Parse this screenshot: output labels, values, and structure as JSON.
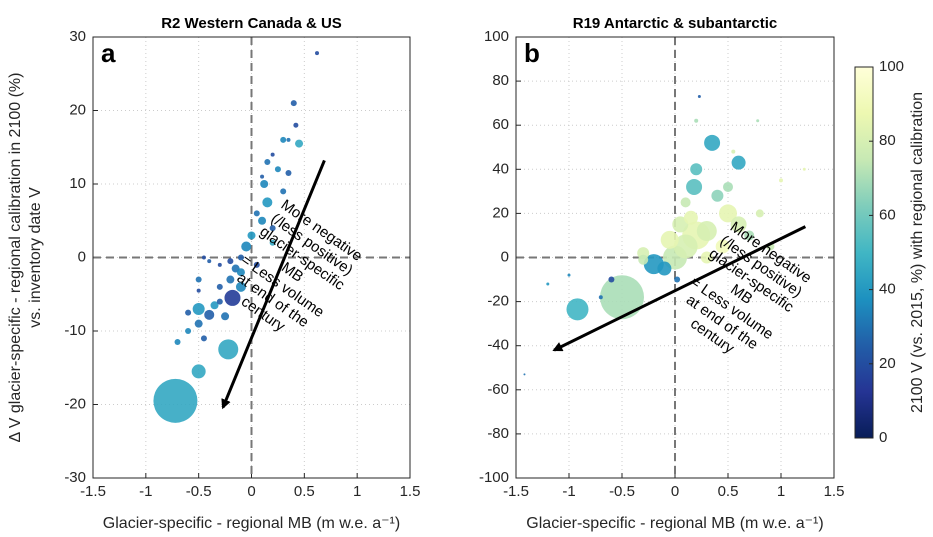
{
  "chart_data": [
    {
      "type": "scatter",
      "panel": "a",
      "title": "R2 Western Canada & US",
      "x_label": "Glacier-specific - regional MB (m w.e. a⁻¹)",
      "y_label": [
        "Δ V glacier-specific - regional calibration in 2100 (%)",
        "vs. inventory date V"
      ],
      "annotation": [
        "More negative",
        "(/less positive)",
        "glacier-specific",
        "MB",
        "= Less volume",
        "at end of the",
        "century"
      ],
      "xlim": [
        -1.5,
        1.5
      ],
      "xticks": [
        -1.5,
        -1,
        -0.5,
        0,
        0.5,
        1,
        1.5
      ],
      "ylim": [
        -30,
        30
      ],
      "yticks": [
        -30,
        -20,
        -10,
        0,
        10,
        20,
        30
      ],
      "grid": true,
      "zero_lines": true,
      "x": [
        0.62,
        0.4,
        0.42,
        0.35,
        0.3,
        0.45,
        0.2,
        0.15,
        0.25,
        0.1,
        0.35,
        0.12,
        0.3,
        0.15,
        0.05,
        0.1,
        0.2,
        0,
        -0.05,
        -0.1,
        -0.2,
        -0.15,
        -0.3,
        -0.4,
        -0.45,
        -0.2,
        -0.1,
        -0.3,
        -0.5,
        -0.5,
        -0.3,
        -0.35,
        -0.18,
        -0.5,
        -0.6,
        -0.4,
        -0.25,
        -0.5,
        -0.6,
        -0.45,
        -0.7,
        -0.22,
        -0.5,
        -0.72,
        0.2,
        0.05,
        -0.1
      ],
      "y": [
        27.8,
        21,
        18,
        16,
        16,
        15.5,
        14,
        13,
        12,
        11,
        11.5,
        10,
        9,
        7.5,
        6,
        5,
        4,
        3,
        1.5,
        0,
        -0.5,
        -1.5,
        -1,
        -0.5,
        0,
        -3,
        -4,
        -4,
        -3,
        -4.5,
        -6,
        -6.5,
        -5.5,
        -7,
        -7.5,
        -7.8,
        -8,
        -9,
        -10,
        -11,
        -11.5,
        -12.5,
        -15.5,
        -19.5,
        2,
        -1,
        -2
      ],
      "sizes": [
        2,
        3,
        2.5,
        2,
        3,
        4,
        2,
        3,
        3,
        2,
        3,
        4,
        3,
        5,
        3,
        4,
        3,
        4,
        5,
        3,
        3,
        4,
        2,
        2,
        2,
        4,
        5,
        3,
        3,
        2,
        3,
        4,
        8,
        6,
        3,
        5,
        4,
        4,
        3,
        3,
        3,
        10,
        7,
        22,
        3,
        3,
        4
      ],
      "color_values": [
        20,
        25,
        20,
        30,
        35,
        45,
        20,
        30,
        35,
        25,
        25,
        35,
        30,
        40,
        30,
        35,
        25,
        40,
        35,
        25,
        20,
        30,
        20,
        25,
        20,
        30,
        35,
        25,
        30,
        20,
        25,
        40,
        15,
        40,
        25,
        25,
        30,
        30,
        35,
        25,
        35,
        45,
        45,
        45,
        45,
        20,
        35
      ]
    },
    {
      "type": "scatter",
      "panel": "b",
      "title": "R19 Antarctic & subantarctic",
      "x_label": "Glacier-specific - regional MB (m w.e. a⁻¹)",
      "annotation": [
        "More negative",
        "(/less positive)",
        "glacier-specific",
        "MB",
        "= Less volume",
        "at end of the",
        "century"
      ],
      "xlim": [
        -1.5,
        1.5
      ],
      "xticks": [
        -1.5,
        -1,
        -0.5,
        0,
        0.5,
        1,
        1.5
      ],
      "ylim": [
        -100,
        100
      ],
      "yticks": [
        -100,
        -80,
        -60,
        -40,
        -20,
        0,
        20,
        40,
        60,
        80,
        100
      ],
      "grid": true,
      "zero_lines": true,
      "x": [
        -1.42,
        -0.92,
        -0.5,
        -0.2,
        -0.1,
        0,
        0.1,
        0.2,
        0.3,
        0.5,
        0.6,
        0.35,
        0.6,
        0.2,
        0.18,
        0.5,
        0.4,
        0.1,
        0.8,
        0.7,
        0.9,
        0.3,
        -0.3,
        -0.3,
        -0.6,
        0.23,
        0.2,
        0.78,
        0.55,
        1.0,
        1.22,
        -1.2,
        -1.0,
        -0.7,
        0.02,
        0.45,
        0.15,
        0.05,
        -0.05
      ],
      "y": [
        -53,
        -23.5,
        -18,
        -3,
        -5,
        0,
        5,
        10,
        12,
        20,
        15,
        52,
        43,
        40,
        32,
        32,
        28,
        25,
        20,
        10,
        5,
        0,
        -1,
        2,
        -10,
        73,
        62,
        62,
        48,
        35,
        40,
        -12,
        -8,
        -18,
        -10,
        5,
        18,
        15,
        8
      ],
      "sizes": [
        1,
        11,
        22,
        10,
        7,
        12,
        12,
        14,
        10,
        9,
        8,
        8,
        7,
        6,
        8,
        5,
        6,
        5,
        4,
        5,
        4,
        6,
        5,
        6,
        3,
        1.5,
        2,
        1.5,
        2,
        2,
        1.5,
        1.5,
        1.5,
        2,
        3,
        7,
        7,
        8,
        9
      ],
      "color_values": [
        30,
        50,
        70,
        40,
        40,
        75,
        80,
        85,
        80,
        85,
        80,
        45,
        45,
        55,
        55,
        70,
        65,
        75,
        80,
        70,
        75,
        85,
        75,
        80,
        20,
        25,
        70,
        70,
        80,
        85,
        85,
        40,
        35,
        30,
        30,
        90,
        85,
        80,
        85
      ],
      "colorbar": {
        "label": "2100 V (vs. 2015, %) with regional calibration",
        "lim": [
          0,
          100
        ],
        "ticks": [
          0,
          20,
          40,
          60,
          80,
          100
        ],
        "colormap": [
          "#081d58",
          "#253494",
          "#225ea8",
          "#1d91c0",
          "#41b6c4",
          "#7fcdbb",
          "#c7e9b4",
          "#edf8b1",
          "#ffffd9"
        ]
      }
    }
  ]
}
